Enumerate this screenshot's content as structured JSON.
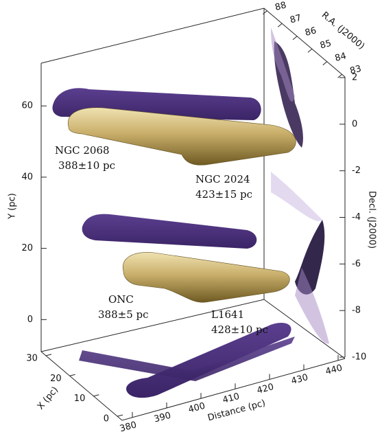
{
  "chart_data": {
    "type": "3d",
    "ylabel": "Y (pc)",
    "ylim": [
      -9,
      72
    ],
    "yticks": [
      0,
      20,
      40,
      60
    ],
    "xlabel": "X (pc)",
    "xlim": [
      32,
      -2
    ],
    "xticks": [
      0,
      10,
      20,
      30
    ],
    "zlabel": "Distance (pc)",
    "zlim": [
      377,
      442
    ],
    "zticks": [
      380,
      390,
      400,
      410,
      420,
      430,
      440
    ],
    "decl_label": "Decl. (J2000)",
    "decl_lim": [
      2,
      -10
    ],
    "decl_ticks": [
      2,
      0,
      -2,
      -4,
      -6,
      -8,
      -10
    ],
    "ra_label": "R.A. (J2000)",
    "ra_lim": [
      88.2,
      82.8
    ],
    "ra_ticks": [
      88,
      87,
      86,
      85,
      84,
      83
    ],
    "annotations": [
      {
        "name": "NGC 2068",
        "distance": "388±10 pc"
      },
      {
        "name": "NGC 2024",
        "distance": "423±15 pc"
      },
      {
        "name": "ONC",
        "distance": "388±5 pc"
      },
      {
        "name": "L1641",
        "distance": "428±10 pc"
      }
    ]
  }
}
